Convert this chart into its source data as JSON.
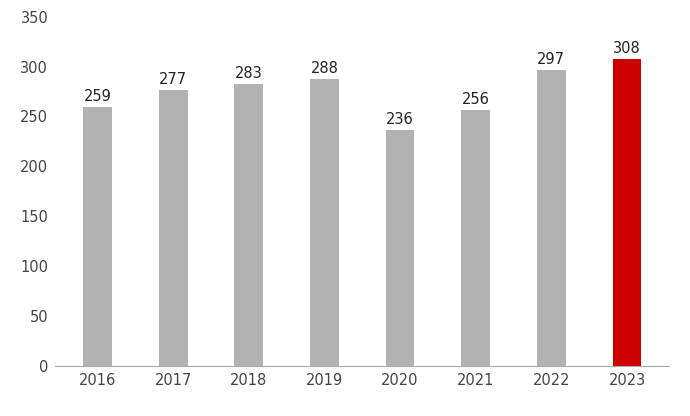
{
  "categories": [
    "2016",
    "2017",
    "2018",
    "2019",
    "2020",
    "2021",
    "2022",
    "2023"
  ],
  "values": [
    259,
    277,
    283,
    288,
    236,
    256,
    297,
    308
  ],
  "bar_colors": [
    "#b2b2b2",
    "#b2b2b2",
    "#b2b2b2",
    "#b2b2b2",
    "#b2b2b2",
    "#b2b2b2",
    "#b2b2b2",
    "#cc0000"
  ],
  "ylim": [
    0,
    350
  ],
  "yticks": [
    0,
    50,
    100,
    150,
    200,
    250,
    300,
    350
  ],
  "label_fontsize": 10.5,
  "tick_fontsize": 10.5,
  "background_color": "#ffffff",
  "bar_width": 0.38
}
